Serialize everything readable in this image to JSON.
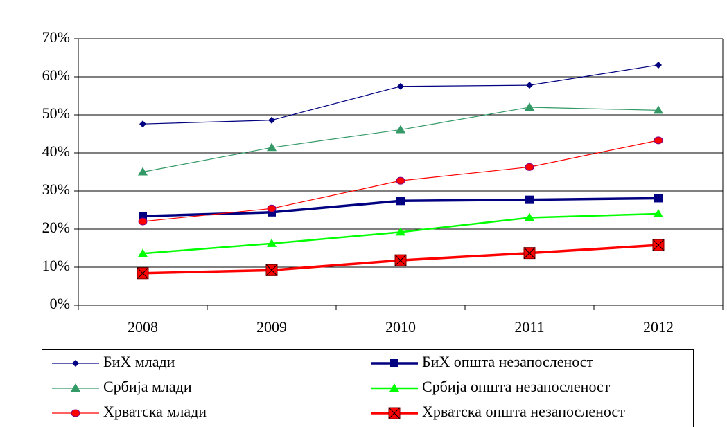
{
  "chart_data": {
    "type": "line",
    "categories": [
      "2008",
      "2009",
      "2010",
      "2011",
      "2012"
    ],
    "series": [
      {
        "name": "БиХ млади",
        "color": "#000080",
        "marker": "diamond",
        "line_width": 1.2,
        "values": [
          47.6,
          48.6,
          57.5,
          57.8,
          63.1
        ]
      },
      {
        "name": "БиХ општа незапосленост",
        "color": "#000080",
        "marker": "square",
        "line_width": 3.5,
        "values": [
          23.4,
          24.4,
          27.4,
          27.7,
          28.1
        ]
      },
      {
        "name": "Србија млади",
        "color": "#339966",
        "marker": "triangle",
        "line_width": 1.2,
        "values": [
          35.0,
          41.4,
          46.1,
          52.0,
          51.2
        ]
      },
      {
        "name": "Србија општа незапосленост",
        "color": "#00ff00",
        "marker": "triangle",
        "line_width": 2.5,
        "values": [
          13.6,
          16.2,
          19.2,
          23.0,
          24.0
        ]
      },
      {
        "name": "Хрватска млади",
        "color": "#ff0000",
        "marker": "circle",
        "line_width": 1.2,
        "values": [
          22.0,
          25.4,
          32.7,
          36.3,
          43.3
        ]
      },
      {
        "name": "Хрватска општа незапосленост",
        "color": "#ff0000",
        "marker": "xsquare",
        "line_width": 3.5,
        "values": [
          8.4,
          9.2,
          11.8,
          13.7,
          15.8
        ]
      }
    ],
    "ylim": [
      0,
      70
    ],
    "yticks": [
      {
        "value": 0,
        "label": "0%"
      },
      {
        "value": 10,
        "label": "10%"
      },
      {
        "value": 20,
        "label": "20%"
      },
      {
        "value": 30,
        "label": "30%"
      },
      {
        "value": 40,
        "label": "40%"
      },
      {
        "value": 50,
        "label": "50%"
      },
      {
        "value": 60,
        "label": "60%"
      },
      {
        "value": 70,
        "label": "70%"
      }
    ],
    "grid": true,
    "legend": "bottom"
  }
}
